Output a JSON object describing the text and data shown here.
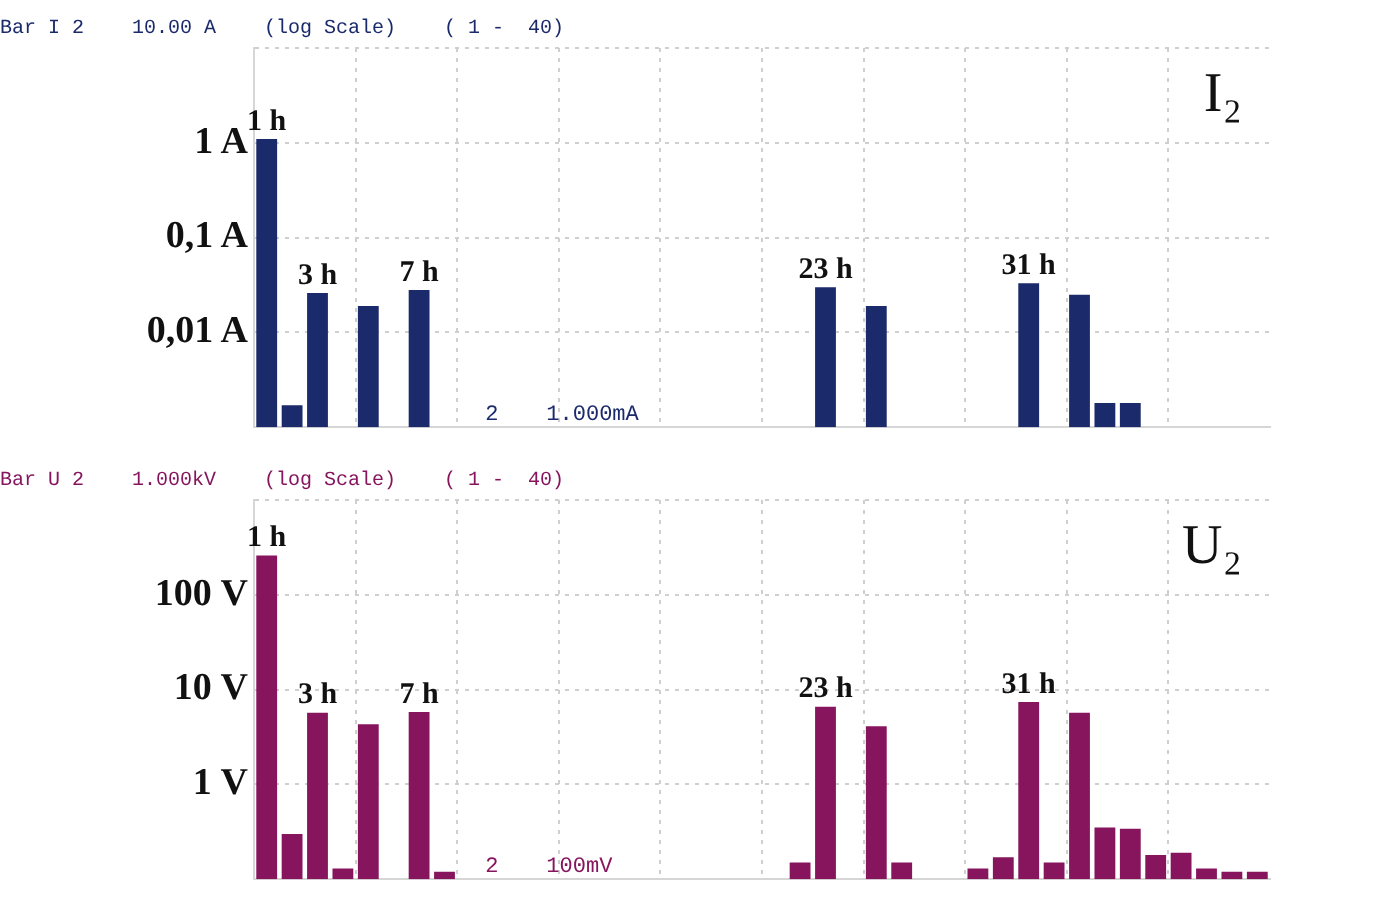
{
  "chart_data": [
    {
      "type": "bar",
      "title": "Bar I 2    10.00 A    (log Scale)    ( 1 -  40)",
      "annotations": [
        "I₂",
        "2",
        "1.000mA",
        "1 h",
        "3 h",
        "7 h",
        "23 h",
        "31 h"
      ],
      "categories": [
        null,
        null,
        null,
        null,
        null,
        null,
        null,
        null,
        null,
        null,
        null,
        null,
        null,
        null,
        null,
        null,
        null,
        null,
        null,
        null,
        null,
        null,
        null,
        null,
        null,
        null,
        null,
        null,
        null,
        null,
        null,
        null,
        null,
        null,
        null,
        null,
        null,
        null,
        null,
        null
      ],
      "series": [
        {
          "color": "#1b2a6b",
          "values": [
            1.1,
            0.0017,
            0.026,
            null,
            0.019,
            null,
            0.028,
            null,
            null,
            null,
            null,
            null,
            null,
            null,
            null,
            null,
            null,
            null,
            null,
            null,
            null,
            null,
            0.03,
            null,
            0.019,
            null,
            null,
            null,
            null,
            null,
            0.033,
            null,
            0.025,
            0.0018,
            0.0018,
            null,
            null,
            null,
            null,
            null
          ]
        }
      ],
      "log": "y",
      "ylim": [
        0.001,
        10
      ],
      "yticks": [
        {
          "value": 0.001,
          "label": null
        },
        {
          "value": 0.01,
          "label": "0,01 A"
        },
        {
          "value": 0.1,
          "label": "0,1 A"
        },
        {
          "value": 1,
          "label": "1 A"
        },
        {
          "value": 10,
          "label": null
        }
      ],
      "grid": true,
      "tick_labels": "y",
      "legend": false
    },
    {
      "type": "bar",
      "title": "Bar U 2    1.000kV    (log Scale)    ( 1 -  40)",
      "annotations": [
        "U₂",
        "2",
        "100mV",
        "1 h",
        "3 h",
        "7 h",
        "23 h",
        "31 h"
      ],
      "categories": [
        null,
        null,
        null,
        null,
        null,
        null,
        null,
        null,
        null,
        null,
        null,
        null,
        null,
        null,
        null,
        null,
        null,
        null,
        null,
        null,
        null,
        null,
        null,
        null,
        null,
        null,
        null,
        null,
        null,
        null,
        null,
        null,
        null,
        null,
        null,
        null,
        null,
        null,
        null,
        null
      ],
      "series": [
        {
          "color": "#86155e",
          "values": [
            260,
            0.3,
            5.7,
            0.13,
            4.3,
            null,
            5.8,
            0.12,
            null,
            null,
            null,
            null,
            null,
            null,
            null,
            null,
            null,
            null,
            null,
            null,
            null,
            0.15,
            6.6,
            null,
            4.1,
            0.15,
            null,
            null,
            0.13,
            0.17,
            7.4,
            0.15,
            5.7,
            0.35,
            0.34,
            0.18,
            0.19,
            0.13,
            0.12,
            0.12
          ]
        }
      ],
      "log": "y",
      "ylim": [
        0.1,
        1000
      ],
      "yticks": [
        {
          "value": 0.1,
          "label": null
        },
        {
          "value": 1,
          "label": "1 V"
        },
        {
          "value": 10,
          "label": "10 V"
        },
        {
          "value": 100,
          "label": "100 V"
        },
        {
          "value": 1000,
          "label": null
        }
      ],
      "grid": true,
      "tick_labels": "y",
      "legend": false
    }
  ]
}
